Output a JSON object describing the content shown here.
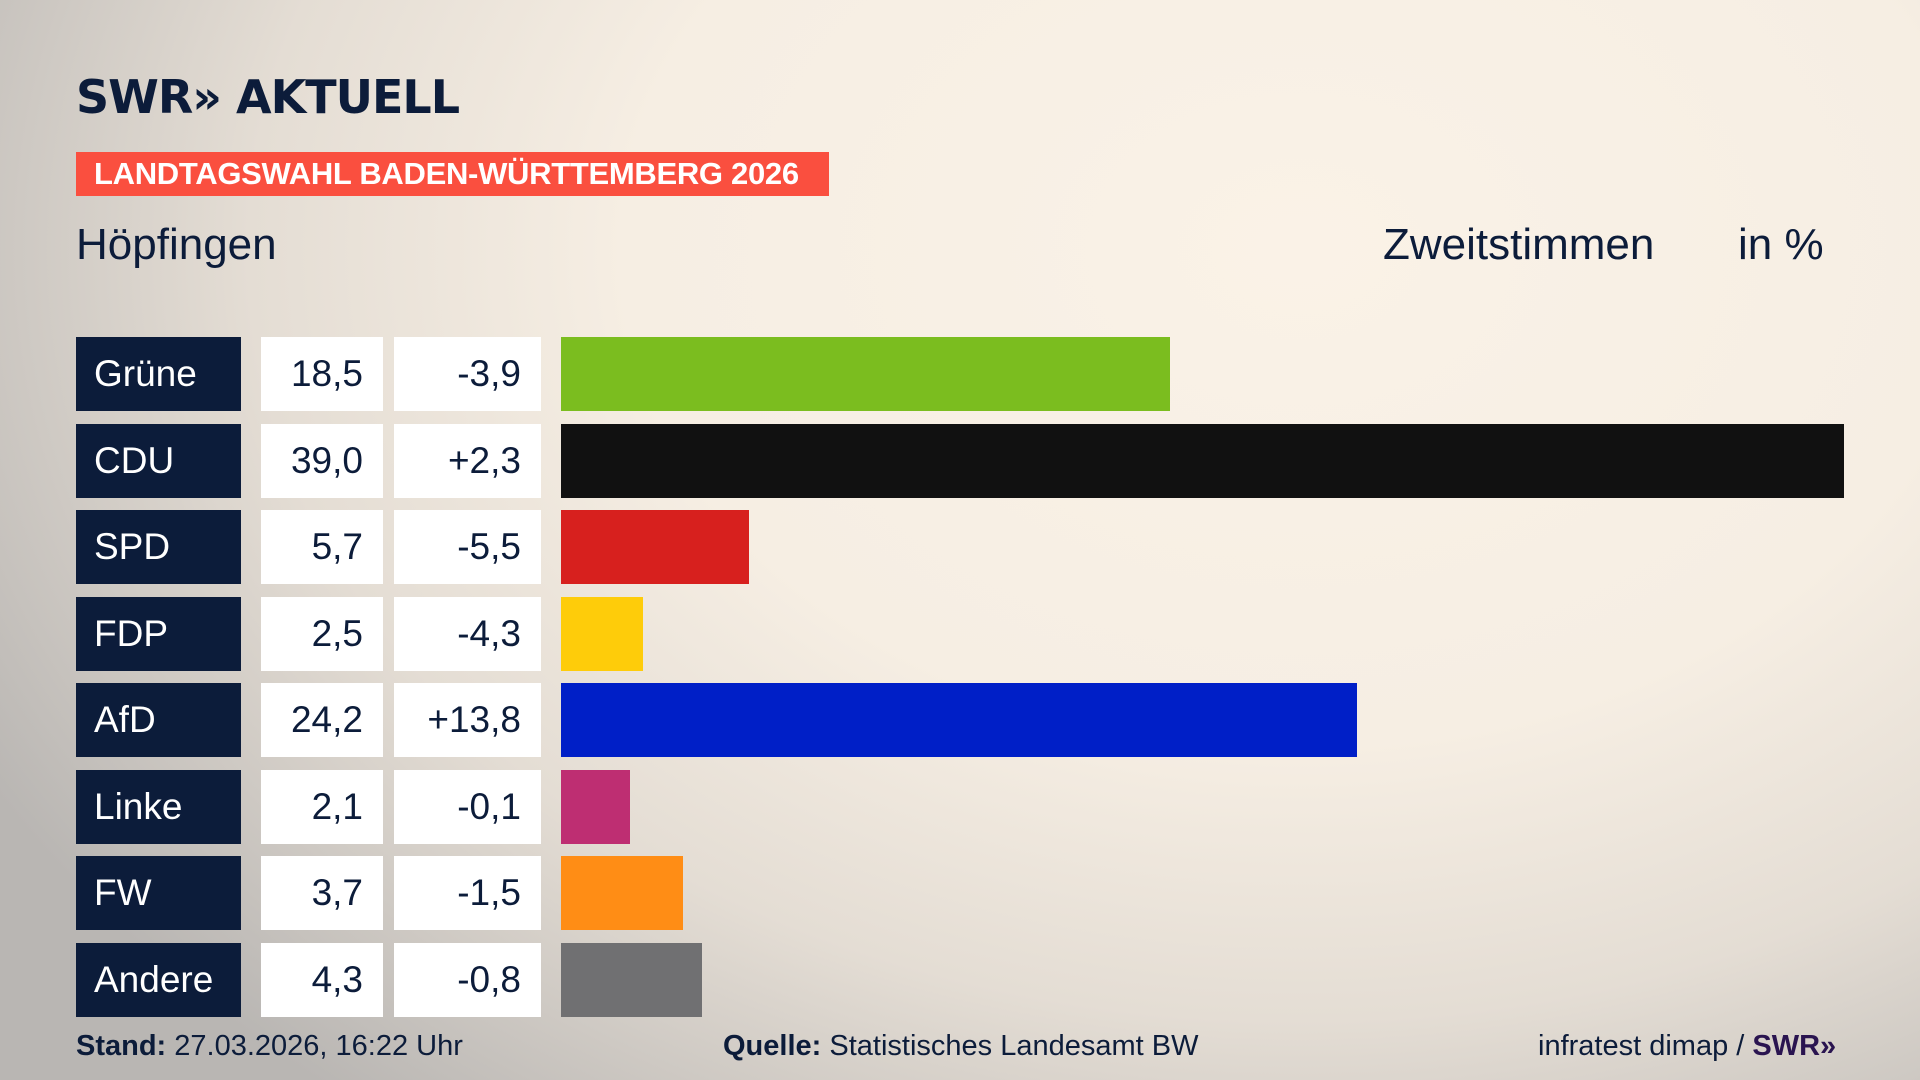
{
  "header": {
    "logo": "SWR» AKTUELL",
    "banner": "LANDTAGSWAHL BADEN-WÜRTTEMBERG 2026",
    "location": "Höpfingen",
    "vote_type": "Zweitstimmen",
    "unit": "in %"
  },
  "chart_data": {
    "type": "bar",
    "orientation": "horizontal",
    "categories": [
      "Grüne",
      "CDU",
      "SPD",
      "FDP",
      "AfD",
      "Linke",
      "FW",
      "Andere"
    ],
    "values": [
      18.5,
      39.0,
      5.7,
      2.5,
      24.2,
      2.1,
      3.7,
      4.3
    ],
    "value_labels": [
      "18,5",
      "39,0",
      "5,7",
      "2,5",
      "24,2",
      "2,1",
      "3,7",
      "4,3"
    ],
    "diff_labels": [
      "-3,9",
      "+2,3",
      "-5,5",
      "-4,3",
      "+13,8",
      "-0,1",
      "-1,5",
      "-0,8"
    ],
    "diffs": [
      -3.9,
      2.3,
      -5.5,
      -4.3,
      13.8,
      -0.1,
      -1.5,
      -0.8
    ],
    "colors": [
      "#7bbd1f",
      "#111111",
      "#d7201e",
      "#fecc0a",
      "#001fc7",
      "#be2e72",
      "#ff8d15",
      "#707072"
    ],
    "xlim": [
      0,
      39.0
    ]
  },
  "footer": {
    "stand_label": "Stand:",
    "stand_value": "27.03.2026, 16:22 Uhr",
    "source_label": "Quelle:",
    "source_value": "Statistisches Landesamt BW",
    "credit": "infratest dimap /",
    "credit_logo": "SWR»"
  }
}
